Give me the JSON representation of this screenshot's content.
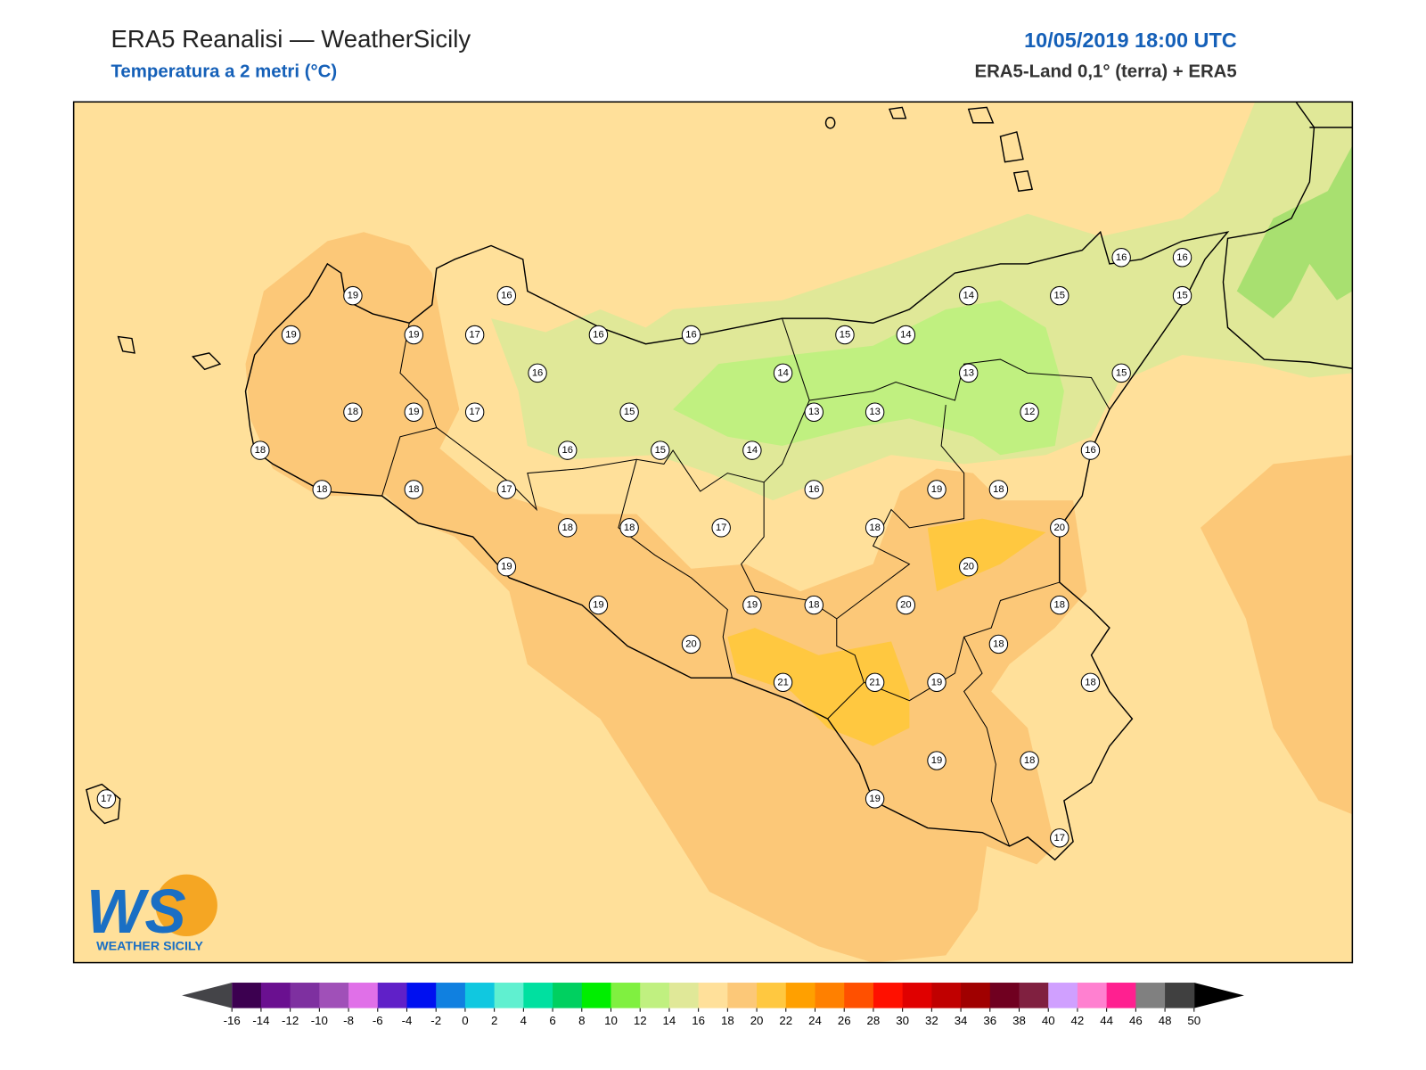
{
  "header": {
    "title": "ERA5 Reanalisi — WeatherSicily",
    "subtitle": "Temperatura a 2 metri (°C)",
    "date": "10/05/2019 18:00 UTC",
    "source": "ERA5-Land 0,1° (terra) + ERA5"
  },
  "map": {
    "stations": [
      19,
      16,
      19,
      19,
      17,
      16,
      16,
      15,
      14,
      14,
      15,
      16,
      16,
      15,
      16,
      14,
      13,
      15,
      18,
      19,
      17,
      15,
      13,
      13,
      12,
      18,
      16,
      15,
      14,
      16,
      18,
      18,
      17,
      16,
      19,
      18,
      18,
      18,
      17,
      18,
      20,
      19,
      20,
      19,
      19,
      18,
      20,
      18,
      20,
      18,
      21,
      21,
      19,
      18,
      19,
      18,
      19,
      17,
      17
    ]
  },
  "logo": {
    "mark": "WS",
    "name": "WEATHER SICILY"
  },
  "colorbar": {
    "ticks": [
      -16,
      -14,
      -12,
      -10,
      -8,
      -6,
      -4,
      -2,
      0,
      2,
      4,
      6,
      8,
      10,
      12,
      14,
      16,
      18,
      20,
      22,
      24,
      26,
      28,
      30,
      32,
      34,
      36,
      38,
      40,
      42,
      44,
      46,
      48,
      50
    ],
    "colors": [
      "#3c0050",
      "#6a1090",
      "#7e30a0",
      "#a050b8",
      "#e070e8",
      "#6020c8",
      "#0010f0",
      "#1080e0",
      "#10c8e0",
      "#60f0d0",
      "#00e0a0",
      "#00d060",
      "#00ee00",
      "#80f040",
      "#c0f080",
      "#e0e898",
      "#ffe09a",
      "#fcc878",
      "#ffc840",
      "#ffa000",
      "#ff8000",
      "#ff5000",
      "#ff1000",
      "#e00000",
      "#c00000",
      "#a00000",
      "#700020",
      "#802040",
      "#d0a0ff",
      "#ff80d0",
      "#ff2090",
      "#808080",
      "#404040"
    ],
    "under_color": "#444448",
    "over_color": "#000000"
  }
}
